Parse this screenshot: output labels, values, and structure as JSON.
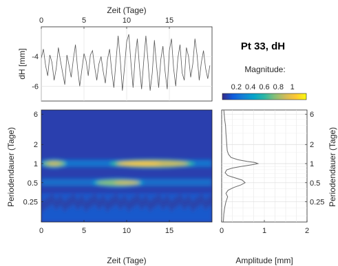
{
  "chart_data": [
    {
      "type": "line",
      "xlabel": "Zeit (Tage)",
      "ylabel": "dH [mm]",
      "x_ticks": [
        0,
        5,
        10,
        15
      ],
      "y_ticks": [
        -6,
        -4
      ],
      "xlim": [
        0,
        20
      ],
      "ylim": [
        -7,
        -2
      ],
      "grid": true,
      "series": [
        {
          "x": [
            0,
            0.25,
            0.5,
            0.75,
            1,
            1.25,
            1.5,
            1.75,
            2,
            2.25,
            2.5,
            2.75,
            3,
            3.25,
            3.5,
            3.75,
            4,
            4.25,
            4.5,
            4.75,
            5,
            5.25,
            5.5,
            5.75,
            6,
            6.25,
            6.5,
            6.75,
            7,
            7.25,
            7.5,
            7.75,
            8,
            8.25,
            8.5,
            8.75,
            9,
            9.25,
            9.5,
            9.75,
            10,
            10.25,
            10.5,
            10.75,
            11,
            11.25,
            11.5,
            11.75,
            12,
            12.25,
            12.5,
            12.75,
            13,
            13.25,
            13.5,
            13.75,
            14,
            14.25,
            14.5,
            14.75,
            15,
            15.25,
            15.5,
            15.75,
            16,
            16.25,
            16.5,
            16.75,
            17,
            17.25,
            17.5,
            17.75,
            18,
            18.25,
            18.5,
            18.75,
            19,
            19.25,
            19.5,
            19.75
          ],
          "values": [
            -4.1,
            -3.5,
            -4.6,
            -5.3,
            -3.9,
            -4.4,
            -5.6,
            -4.8,
            -3.4,
            -4.3,
            -5.1,
            -5.9,
            -3.9,
            -4.6,
            -5.4,
            -4.2,
            -3.2,
            -4.8,
            -6.0,
            -4.9,
            -3.8,
            -4.3,
            -5.3,
            -3.9,
            -3.6,
            -4.7,
            -5.6,
            -4.5,
            -4.0,
            -5.0,
            -5.8,
            -4.2,
            -3.5,
            -5.0,
            -6.1,
            -4.3,
            -2.6,
            -4.2,
            -6.3,
            -4.7,
            -3.0,
            -2.5,
            -4.4,
            -6.1,
            -4.0,
            -2.8,
            -4.7,
            -6.2,
            -4.3,
            -2.6,
            -4.3,
            -6.3,
            -5.1,
            -2.9,
            -4.6,
            -6.1,
            -4.2,
            -3.3,
            -5.0,
            -6.2,
            -3.6,
            -2.8,
            -4.8,
            -6.0,
            -4.1,
            -3.2,
            -5.1,
            -5.6,
            -3.4,
            -4.0,
            -5.4,
            -4.5,
            -2.8,
            -3.9,
            -5.6,
            -4.4,
            -3.6,
            -4.8,
            -5.5,
            -4.6
          ]
        }
      ]
    },
    {
      "type": "heatmap",
      "title": "Pt 33, dH",
      "xlabel": "Zeit (Tage)",
      "ylabel": "Periodendauer (Tage)",
      "x_ticks": [
        0,
        5,
        10,
        15
      ],
      "y_ticks": [
        6,
        2,
        1,
        0.5,
        0.25
      ],
      "xlim": [
        0,
        20
      ],
      "ylim": [
        0.12,
        7
      ],
      "y_scale": "log",
      "colorbar": {
        "label": "Magnitude:",
        "ticks": [
          0.2,
          0.4,
          0.6,
          0.8,
          1
        ],
        "range": [
          0,
          1.2
        ],
        "colormap": "parula",
        "colors": [
          "#352a87",
          "#0f5cdd",
          "#1481d6",
          "#06a4ca",
          "#2eb7a4",
          "#87bf77",
          "#d1bb59",
          "#fec832",
          "#f9fb0e"
        ]
      },
      "features": [
        {
          "period": 1.0,
          "x_range": [
            0,
            3
          ],
          "x_peak": 1.5,
          "magnitude": 0.95
        },
        {
          "period": 1.0,
          "x_range": [
            8,
            18
          ],
          "x_peak": 11.5,
          "magnitude": 1.05
        },
        {
          "period": 0.5,
          "x_range": [
            6,
            12
          ],
          "x_peak": 10,
          "magnitude": 0.85
        }
      ]
    },
    {
      "type": "line",
      "xlabel": "Amplitude [mm]",
      "ylabel": "Periodendauer (Tage)",
      "x_ticks": [
        0,
        1,
        2
      ],
      "y_ticks": [
        6,
        2,
        1,
        0.5,
        0.25
      ],
      "xlim": [
        0,
        2
      ],
      "ylim": [
        0.12,
        7
      ],
      "y_scale": "log",
      "grid": true,
      "series": [
        {
          "period": [
            7,
            6,
            5,
            4,
            3,
            2.5,
            2,
            1.6,
            1.4,
            1.25,
            1.15,
            1.08,
            1.04,
            1.0,
            0.96,
            0.9,
            0.85,
            0.8,
            0.72,
            0.65,
            0.6,
            0.55,
            0.5,
            0.46,
            0.42,
            0.38,
            0.34,
            0.3,
            0.25,
            0.2,
            0.16,
            0.12
          ],
          "amplitude": [
            0.05,
            0.06,
            0.07,
            0.09,
            0.1,
            0.11,
            0.12,
            0.13,
            0.16,
            0.22,
            0.38,
            0.6,
            0.78,
            0.85,
            0.72,
            0.45,
            0.25,
            0.12,
            0.08,
            0.14,
            0.3,
            0.48,
            0.55,
            0.45,
            0.28,
            0.15,
            0.1,
            0.14,
            0.1,
            0.07,
            0.05,
            0.04
          ]
        }
      ]
    }
  ]
}
